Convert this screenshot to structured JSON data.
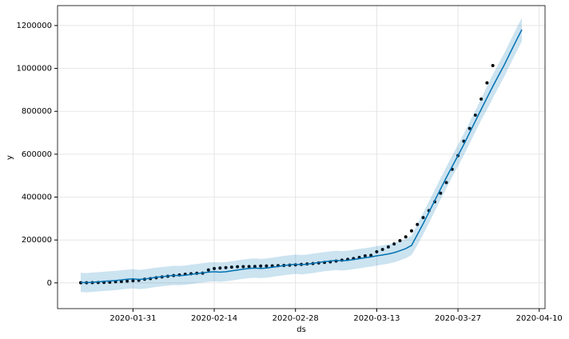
{
  "chart_data": {
    "type": "line",
    "x_label": "ds",
    "y_label": "y",
    "x": [
      "2020-01-22",
      "2020-01-23",
      "2020-01-24",
      "2020-01-25",
      "2020-01-26",
      "2020-01-27",
      "2020-01-28",
      "2020-01-29",
      "2020-01-30",
      "2020-01-31",
      "2020-02-01",
      "2020-02-02",
      "2020-02-03",
      "2020-02-04",
      "2020-02-05",
      "2020-02-06",
      "2020-02-07",
      "2020-02-08",
      "2020-02-09",
      "2020-02-10",
      "2020-02-11",
      "2020-02-12",
      "2020-02-13",
      "2020-02-14",
      "2020-02-15",
      "2020-02-16",
      "2020-02-17",
      "2020-02-18",
      "2020-02-19",
      "2020-02-20",
      "2020-02-21",
      "2020-02-22",
      "2020-02-23",
      "2020-02-24",
      "2020-02-25",
      "2020-02-26",
      "2020-02-27",
      "2020-02-28",
      "2020-02-29",
      "2020-03-01",
      "2020-03-02",
      "2020-03-03",
      "2020-03-04",
      "2020-03-05",
      "2020-03-06",
      "2020-03-07",
      "2020-03-08",
      "2020-03-09",
      "2020-03-10",
      "2020-03-11",
      "2020-03-12",
      "2020-03-13",
      "2020-03-14",
      "2020-03-15",
      "2020-03-16",
      "2020-03-17",
      "2020-03-18",
      "2020-03-19",
      "2020-03-20",
      "2020-03-21",
      "2020-03-22",
      "2020-03-23",
      "2020-03-24",
      "2020-03-25",
      "2020-03-26",
      "2020-03-27",
      "2020-03-28",
      "2020-03-29",
      "2020-03-30",
      "2020-03-31",
      "2020-04-01",
      "2020-04-02",
      "2020-04-03",
      "2020-04-04",
      "2020-04-05",
      "2020-04-06",
      "2020-04-07"
    ],
    "series": [
      {
        "color": "#000000",
        "marker": "dot",
        "values": [
          555,
          654,
          941,
          1434,
          2118,
          2927,
          5578,
          6166,
          8234,
          9927,
          12038,
          16787,
          19881,
          23892,
          27635,
          30794,
          34391,
          37120,
          40150,
          42762,
          44802,
          45221,
          60368,
          66885,
          69030,
          71224,
          73258,
          75136,
          75639,
          76197,
          76823,
          78579,
          78965,
          79568,
          80413,
          81395,
          82754,
          84120,
          86011,
          88369,
          90306,
          92840,
          95120,
          97886,
          101801,
          105847,
          109821,
          113590,
          118620,
          125875,
          128352,
          145205,
          156101,
          167454,
          181574,
          197102,
          214821,
          242570,
          272208,
          304507,
          336953,
          378231,
          418041,
          467653,
          529591,
          593291,
          660706,
          720117,
          782365,
          857487,
          932605,
          1013466,
          null,
          null,
          null,
          null,
          null
        ]
      },
      {
        "color": "#0072B2",
        "marker": "line",
        "values": [
          2000,
          1000,
          3000,
          5000,
          7000,
          9000,
          11000,
          14000,
          17000,
          19000,
          16000,
          18000,
          22000,
          26000,
          29000,
          32000,
          35000,
          34000,
          36000,
          40000,
          43000,
          47000,
          50000,
          52000,
          50000,
          52000,
          56000,
          60000,
          64000,
          67000,
          69000,
          67000,
          69000,
          73000,
          77000,
          81000,
          84000,
          87000,
          85000,
          87000,
          91000,
          95000,
          99000,
          102000,
          105000,
          103000,
          105000,
          109000,
          113000,
          117000,
          121000,
          126000,
          130000,
          135000,
          141000,
          150000,
          160000,
          175000,
          225000,
          276000,
          330000,
          384000,
          438000,
          491000,
          543000,
          594000,
          645000,
          700000,
          755000,
          809000,
          863000,
          916000,
          967000,
          1018000,
          1073000,
          1128000,
          1181000
        ],
        "lower": [
          -43000,
          -44000,
          -42000,
          -40000,
          -38000,
          -36000,
          -34000,
          -31000,
          -28000,
          -26000,
          -29000,
          -27000,
          -23000,
          -19000,
          -16000,
          -13000,
          -10000,
          -11000,
          -9000,
          -5000,
          -2000,
          2000,
          5000,
          7000,
          5000,
          7000,
          11000,
          15000,
          19000,
          22000,
          24000,
          22000,
          24000,
          28000,
          32000,
          36000,
          39000,
          42000,
          40000,
          42000,
          46000,
          50000,
          54000,
          57000,
          60000,
          58000,
          60000,
          64000,
          68000,
          72000,
          76000,
          81000,
          85000,
          90000,
          96000,
          105000,
          115000,
          130000,
          175000,
          226000,
          280000,
          334000,
          388000,
          441000,
          493000,
          544000,
          595000,
          650000,
          705000,
          759000,
          808000,
          861000,
          912000,
          963000,
          1018000,
          1073000,
          1126000
        ],
        "upper": [
          47000,
          46000,
          48000,
          50000,
          52000,
          54000,
          56000,
          59000,
          62000,
          64000,
          61000,
          63000,
          67000,
          71000,
          74000,
          77000,
          80000,
          79000,
          81000,
          85000,
          88000,
          92000,
          95000,
          97000,
          95000,
          97000,
          101000,
          105000,
          109000,
          112000,
          114000,
          112000,
          114000,
          118000,
          122000,
          126000,
          129000,
          132000,
          130000,
          132000,
          136000,
          140000,
          144000,
          147000,
          150000,
          148000,
          150000,
          154000,
          158000,
          162000,
          166000,
          171000,
          175000,
          180000,
          186000,
          195000,
          205000,
          220000,
          275000,
          326000,
          380000,
          434000,
          488000,
          541000,
          593000,
          644000,
          695000,
          750000,
          805000,
          859000,
          918000,
          971000,
          1022000,
          1073000,
          1128000,
          1183000,
          1236000
        ]
      }
    ],
    "xlim": [
      "2020-01-18",
      "2020-04-11"
    ],
    "xticks": [
      "2020-01-31",
      "2020-02-14",
      "2020-02-28",
      "2020-03-13",
      "2020-03-27",
      "2020-04-10"
    ],
    "ylim": [
      -120000,
      1293000
    ],
    "yticks": [
      0,
      200000,
      400000,
      600000,
      800000,
      1000000,
      1200000
    ],
    "grid": true
  }
}
